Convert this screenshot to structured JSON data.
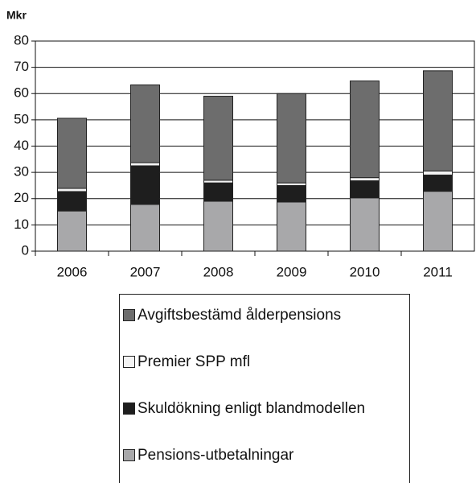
{
  "chart_data": {
    "type": "bar",
    "stacked": true,
    "ylabel": "Mkr",
    "categories": [
      "2006",
      "2007",
      "2008",
      "2009",
      "2010",
      "2011"
    ],
    "series": [
      {
        "name": "Pensions-utbetalningar",
        "color": "#a8a8aa",
        "values": [
          15.3,
          17.8,
          19,
          18.7,
          20.3,
          22.8
        ]
      },
      {
        "name": "Skuldökning enligt blandmodellen",
        "color": "#1e1e1e",
        "values": [
          7.4,
          14.7,
          7,
          6.3,
          6.5,
          6.2
        ]
      },
      {
        "name": "Premier SPP mfl",
        "color": "#f4f4f4",
        "values": [
          1.2,
          1.2,
          1,
          1,
          1.2,
          1.5
        ]
      },
      {
        "name": "Avgiftsbestämd ålderpensions",
        "color": "#6d6d6d",
        "values": [
          26.7,
          29.6,
          32,
          34,
          36.8,
          38.2
        ]
      }
    ],
    "ylim": [
      0,
      80
    ],
    "yticks": [
      0,
      10,
      20,
      30,
      40,
      50,
      60,
      70,
      80
    ],
    "grid": true
  }
}
